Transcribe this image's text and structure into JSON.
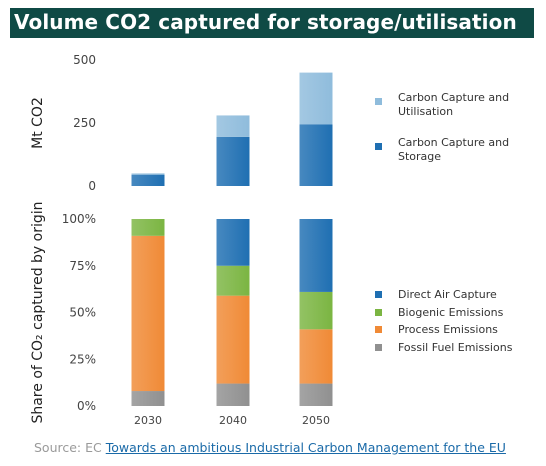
{
  "title": "Volume CO2 captured for storage/utilisation",
  "source": {
    "prefix": "Source: EC ",
    "link_text": "Towards an ambitious Industrial Carbon Management for the EU"
  },
  "colors": {
    "utilisation": "#8fbcdc",
    "storage": "#1f6fb2",
    "direct_air_capture": "#1f6fb2",
    "biogenic": "#7bb542",
    "process": "#f08a36",
    "fossil": "#909090"
  },
  "chart_data": [
    {
      "type": "bar",
      "stacked": true,
      "categories": [
        "2030",
        "2040",
        "2050"
      ],
      "ylabel": "Mt CO2",
      "ylim": [
        0,
        500
      ],
      "yticks": [
        "500",
        "250",
        "0"
      ],
      "series": [
        {
          "name": "Carbon Capture and Storage",
          "values": [
            45,
            195,
            245
          ]
        },
        {
          "name": "Carbon Capture and Utilisation",
          "values": [
            5,
            85,
            205
          ]
        }
      ],
      "legend": [
        "Carbon Capture and Utilisation",
        "Carbon Capture and Storage"
      ],
      "legend_position": "right"
    },
    {
      "type": "bar",
      "stacked": true,
      "categories": [
        "2030",
        "2040",
        "2050"
      ],
      "ylabel": "Share of CO₂ captured by origin",
      "ylim": [
        0,
        100
      ],
      "yticks": [
        "100%",
        "75%",
        "50%",
        "25%",
        "0%"
      ],
      "series": [
        {
          "name": "Fossil Fuel Emissions",
          "values": [
            8,
            12,
            12
          ]
        },
        {
          "name": "Process Emissions",
          "values": [
            83,
            47,
            29
          ]
        },
        {
          "name": "Biogenic Emissions",
          "values": [
            9,
            16,
            20
          ]
        },
        {
          "name": "Direct Air Capture",
          "values": [
            0,
            25,
            39
          ]
        }
      ],
      "legend": [
        "Direct Air Capture",
        "Biogenic Emissions",
        "Process Emissions",
        "Fossil Fuel Emissions"
      ],
      "legend_position": "right"
    }
  ]
}
